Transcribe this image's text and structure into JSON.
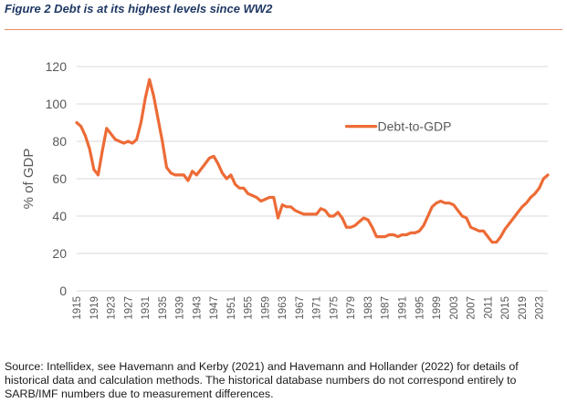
{
  "figure": {
    "title": "Figure 2 Debt is at its highest levels since WW2",
    "source": "Source: Intellidex, see Havemann and Kerby (2021) and Havemann and Hollander (2022) for details of historical data and calculation methods. The historical database numbers do not correspond entirely to SARB/IMF numbers due to measurement differences."
  },
  "colors": {
    "series": "#ed6b36",
    "title": "#1f3864",
    "grid": "#d9d9d9",
    "axis_text": "#595959",
    "rule": "#e8896a"
  },
  "chart_data": {
    "type": "line",
    "title": "Figure 2 Debt is at its highest levels since WW2",
    "xlabel": "",
    "ylabel": "% of GDP",
    "xlim": [
      1915,
      2025
    ],
    "ylim": [
      0,
      120
    ],
    "yticks": [
      "0",
      "20",
      "40",
      "60",
      "80",
      "100",
      "120"
    ],
    "xticks": [
      "1915",
      "1919",
      "1923",
      "1927",
      "1931",
      "1935",
      "1939",
      "1943",
      "1947",
      "1951",
      "1955",
      "1959",
      "1963",
      "1967",
      "1971",
      "1975",
      "1979",
      "1983",
      "1987",
      "1991",
      "1995",
      "1999",
      "2003",
      "2007",
      "2011",
      "2015",
      "2019",
      "2023"
    ],
    "grid": true,
    "legend": "top-right",
    "series": [
      {
        "name": "Debt-to-GDP",
        "x": [
          1915,
          1916,
          1917,
          1918,
          1919,
          1920,
          1921,
          1922,
          1923,
          1924,
          1925,
          1926,
          1927,
          1928,
          1929,
          1930,
          1931,
          1932,
          1933,
          1934,
          1935,
          1936,
          1937,
          1938,
          1939,
          1940,
          1941,
          1942,
          1943,
          1944,
          1945,
          1946,
          1947,
          1948,
          1949,
          1950,
          1951,
          1952,
          1953,
          1954,
          1955,
          1956,
          1957,
          1958,
          1959,
          1960,
          1961,
          1962,
          1963,
          1964,
          1965,
          1966,
          1967,
          1968,
          1969,
          1970,
          1971,
          1972,
          1973,
          1974,
          1975,
          1976,
          1977,
          1978,
          1979,
          1980,
          1981,
          1982,
          1983,
          1984,
          1985,
          1986,
          1987,
          1988,
          1989,
          1990,
          1991,
          1992,
          1993,
          1994,
          1995,
          1996,
          1997,
          1998,
          1999,
          2000,
          2001,
          2002,
          2003,
          2004,
          2005,
          2006,
          2007,
          2008,
          2009,
          2010,
          2011,
          2012,
          2013,
          2014,
          2015,
          2016,
          2017,
          2018,
          2019,
          2020,
          2021,
          2022,
          2023,
          2024,
          2025
        ],
        "values": [
          90,
          88,
          83,
          76,
          65,
          62,
          75,
          87,
          84,
          81,
          80,
          79,
          80,
          79,
          81,
          90,
          103,
          113,
          104,
          92,
          80,
          66,
          63,
          62,
          62,
          62,
          59,
          64,
          62,
          65,
          68,
          71,
          72,
          68,
          63,
          60,
          62,
          57,
          55,
          55,
          52,
          51,
          50,
          48,
          49,
          50,
          50,
          39,
          46,
          45,
          45,
          43,
          42,
          41,
          41,
          41,
          41,
          44,
          43,
          40,
          40,
          42,
          39,
          34,
          34,
          35,
          37,
          39,
          38,
          34,
          29,
          29,
          29,
          30,
          30,
          29,
          30,
          30,
          31,
          31,
          32,
          35,
          40,
          45,
          47,
          48,
          47,
          47,
          46,
          43,
          40,
          39,
          34,
          33,
          32,
          32,
          29,
          26,
          26,
          29,
          33,
          36,
          39,
          42,
          45,
          47,
          50,
          52,
          55,
          60,
          62
        ]
      }
    ]
  }
}
